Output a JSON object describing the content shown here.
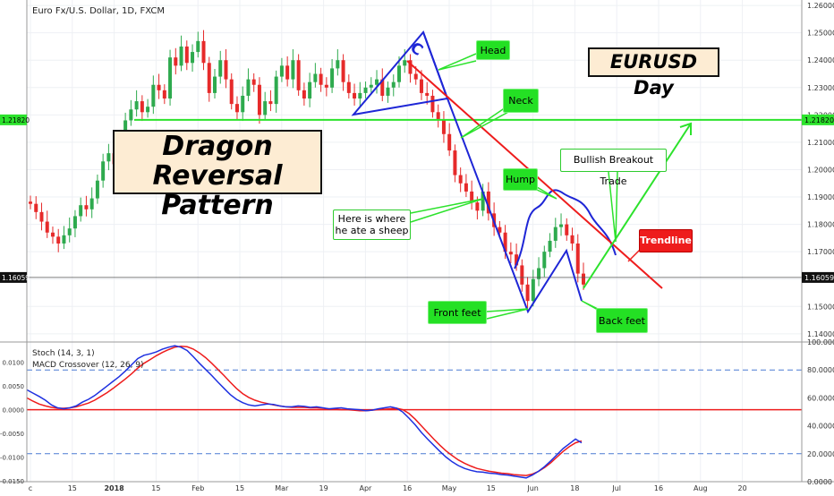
{
  "header": {
    "symbol_title": "Euro Fx/U.S. Dollar, 1D, FXCM"
  },
  "annotations": {
    "pattern_title_line1": "Dragon",
    "pattern_title_line2": "Reversal Pattern",
    "pair_title": "EURUSD Day",
    "head": "Head",
    "neck": "Neck",
    "hump": "Hump",
    "sheep_line1": "Here is where",
    "sheep_line2": "he ate a sheep",
    "breakout": "Bullish Breakout Trade",
    "trendline": "Trendline",
    "front_feet": "Front feet",
    "back_feet": "Back feet",
    "eye": "C"
  },
  "colors": {
    "up_candle": "#2eaa4e",
    "down_candle": "#e62a2a",
    "blue": "#1e26d6",
    "green": "#2ce22c",
    "red": "#ee1c1c",
    "stoch_k": "#1e30e0",
    "stoch_d": "#ee1c1c",
    "dashed": "#4a7ad4"
  },
  "chart_data": [
    {
      "type": "candlestick",
      "title": "Euro Fx/U.S. Dollar, 1D, FXCM",
      "ylim": [
        1.137,
        1.262
      ],
      "y_ticks": [
        "1.14000",
        "1.15000",
        "1.16000",
        "1.17000",
        "1.18000",
        "1.19000",
        "1.20000",
        "1.21000",
        "1.22000",
        "1.23000",
        "1.24000",
        "1.25000",
        "1.26000"
      ],
      "x_ticks": [
        "c",
        "15",
        "2018",
        "15",
        "Feb",
        "15",
        "Mar",
        "19",
        "Apr",
        "16",
        "May",
        "15",
        "Jun",
        "18",
        "Jul",
        "16",
        "Aug",
        "20"
      ],
      "current_price_label": "1.16059",
      "current_price": 1.16059,
      "level_label": "1.21820",
      "level": 1.2182,
      "closes": [
        1.1875,
        1.1845,
        1.181,
        1.177,
        1.1755,
        1.173,
        1.176,
        1.1785,
        1.183,
        1.187,
        1.1855,
        1.1895,
        1.196,
        1.203,
        1.206,
        1.202,
        1.208,
        1.218,
        1.222,
        1.225,
        1.221,
        1.223,
        1.231,
        1.229,
        1.226,
        1.241,
        1.238,
        1.245,
        1.239,
        1.243,
        1.247,
        1.239,
        1.228,
        1.234,
        1.24,
        1.233,
        1.224,
        1.221,
        1.227,
        1.233,
        1.231,
        1.22,
        1.225,
        1.224,
        1.234,
        1.238,
        1.233,
        1.24,
        1.229,
        1.226,
        1.232,
        1.235,
        1.231,
        1.23,
        1.237,
        1.24,
        1.232,
        1.228,
        1.226,
        1.228,
        1.23,
        1.231,
        1.233,
        1.227,
        1.23,
        1.232,
        1.238,
        1.24,
        1.235,
        1.233,
        1.228,
        1.227,
        1.221,
        1.218,
        1.213,
        1.207,
        1.198,
        1.195,
        1.192,
        1.188,
        1.185,
        1.192,
        1.184,
        1.179,
        1.177,
        1.17,
        1.169,
        1.165,
        1.158,
        1.152,
        1.16,
        1.164,
        1.17,
        1.174,
        1.179,
        1.18,
        1.176,
        1.173,
        1.162,
        1.158
      ],
      "stoch": {
        "name": "Stoch (14, 3, 1)",
        "ylim": [
          0,
          100
        ],
        "y_ticks": [
          "0.0000",
          "20.0000",
          "40.0000",
          "60.0000",
          "80.0000",
          "100.0000"
        ],
        "levels": [
          20,
          80
        ]
      },
      "macd": {
        "name": "MACD Crossover (12, 26, 9)",
        "ylim": [
          -0.0152,
          0.0143
        ],
        "y_ticks": [
          "-0.0150",
          "-0.0100",
          "-0.0050",
          "0.0000",
          "0.0050",
          "0.0100"
        ],
        "zero": 0.0
      },
      "osc_k": [
        0.0042,
        0.0035,
        0.0028,
        0.002,
        0.001,
        0.0004,
        0.0002,
        0.0004,
        0.0008,
        0.0016,
        0.0022,
        0.003,
        0.004,
        0.005,
        0.006,
        0.007,
        0.0082,
        0.0095,
        0.0108,
        0.0115,
        0.0118,
        0.0122,
        0.0128,
        0.0132,
        0.0135,
        0.0132,
        0.0125,
        0.0112,
        0.0098,
        0.0085,
        0.0072,
        0.0058,
        0.0045,
        0.0032,
        0.0022,
        0.0015,
        0.001,
        0.0008,
        0.001,
        0.0012,
        0.0011,
        0.0008,
        0.0006,
        0.0006,
        0.0008,
        0.0007,
        0.0005,
        0.0006,
        0.0004,
        0.0002,
        0.0003,
        0.0004,
        0.0002,
        0.0001,
        0.0,
        -0.0002,
        -0.0001,
        0.0002,
        0.0004,
        0.0006,
        0.0003,
        -0.0005,
        -0.0018,
        -0.0032,
        -0.0048,
        -0.0062,
        -0.0075,
        -0.0088,
        -0.01,
        -0.011,
        -0.0118,
        -0.0124,
        -0.0128,
        -0.0131,
        -0.0132,
        -0.0134,
        -0.0135,
        -0.0137,
        -0.0138,
        -0.014,
        -0.0142,
        -0.0144,
        -0.0138,
        -0.013,
        -0.012,
        -0.0108,
        -0.0095,
        -0.0082,
        -0.0072,
        -0.0062,
        -0.007
      ],
      "osc_d": [
        0.0025,
        0.0018,
        0.0012,
        0.0008,
        0.0005,
        0.0003,
        0.0003,
        0.0004,
        0.0006,
        0.001,
        0.0014,
        0.002,
        0.0028,
        0.0036,
        0.0045,
        0.0055,
        0.0065,
        0.0076,
        0.0088,
        0.0098,
        0.0106,
        0.0114,
        0.0121,
        0.0127,
        0.0132,
        0.0134,
        0.0133,
        0.0128,
        0.012,
        0.011,
        0.0098,
        0.0085,
        0.0072,
        0.0058,
        0.0045,
        0.0034,
        0.0026,
        0.002,
        0.0016,
        0.0013,
        0.001,
        0.0008,
        0.0006,
        0.0005,
        0.0005,
        0.0005,
        0.0004,
        0.0004,
        0.0003,
        0.0002,
        0.0001,
        0.0,
        0.0,
        -0.0001,
        -0.0002,
        -0.0002,
        -0.0001,
        0.0,
        0.0001,
        0.0002,
        0.0003,
        0.0,
        -0.0008,
        -0.002,
        -0.0034,
        -0.0048,
        -0.0062,
        -0.0075,
        -0.0087,
        -0.0097,
        -0.0106,
        -0.0113,
        -0.0119,
        -0.0124,
        -0.0127,
        -0.013,
        -0.0132,
        -0.0134,
        -0.0135,
        -0.0137,
        -0.0138,
        -0.0139,
        -0.0136,
        -0.013,
        -0.0122,
        -0.0112,
        -0.01,
        -0.0088,
        -0.0078,
        -0.007,
        -0.0066
      ]
    }
  ]
}
